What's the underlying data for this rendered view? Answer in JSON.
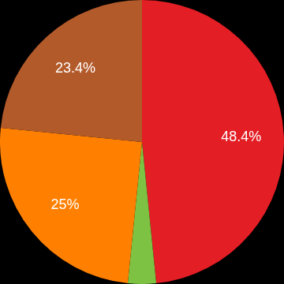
{
  "chart_data": {
    "type": "pie",
    "values": [
      48.4,
      3.2,
      25,
      23.4
    ],
    "value_labels": [
      "48.4%",
      null,
      "25%",
      "23.4%"
    ],
    "colors": [
      "#e31e24",
      "#7dc242",
      "#ff8000",
      "#b35a2a"
    ],
    "data_labels": true
  }
}
